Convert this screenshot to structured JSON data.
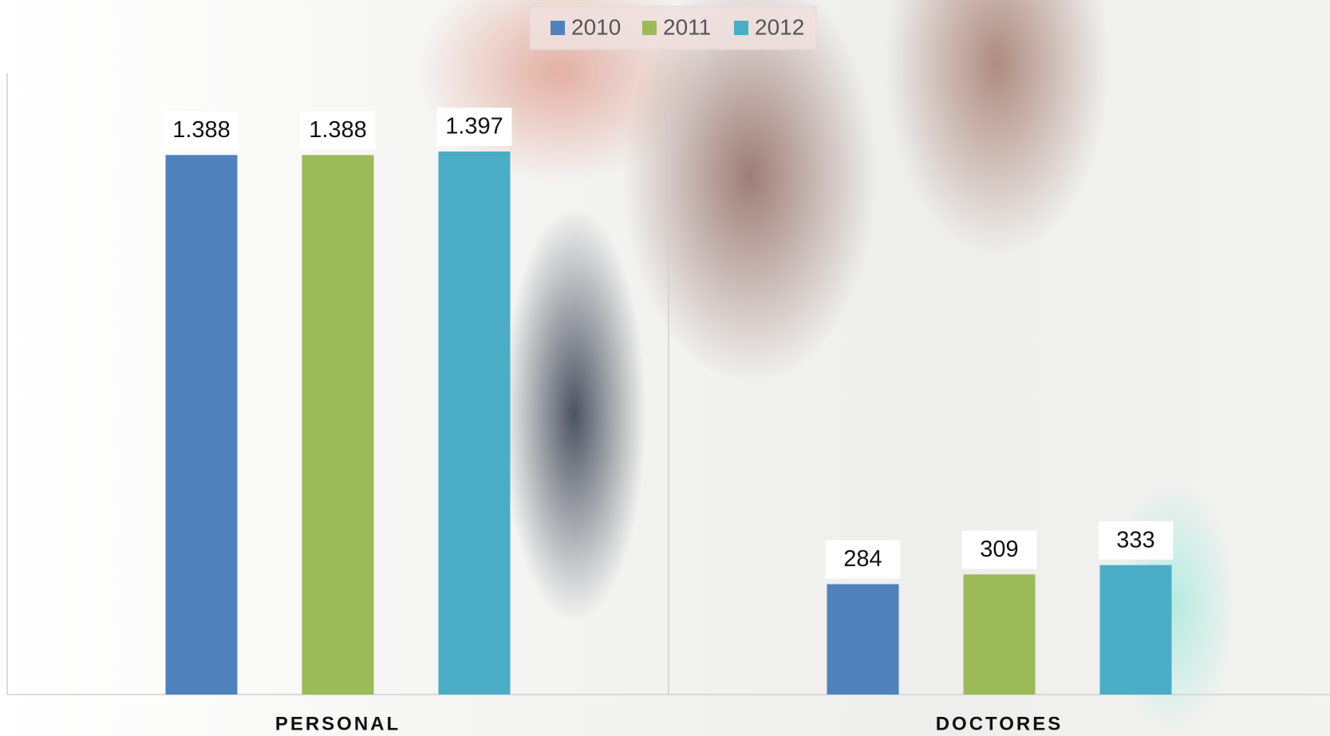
{
  "chart_data": {
    "type": "bar",
    "categories": [
      "PERSONAL",
      "DOCTORES"
    ],
    "series": [
      {
        "name": "2010",
        "color": "#4f81bd",
        "values": [
          1388,
          284
        ],
        "value_labels": [
          "1.388",
          "284"
        ]
      },
      {
        "name": "2011",
        "color": "#9bbb59",
        "values": [
          1388,
          309
        ],
        "value_labels": [
          "1.388",
          "309"
        ]
      },
      {
        "name": "2012",
        "color": "#4bacc6",
        "values": [
          1397,
          333
        ],
        "value_labels": [
          "1.397",
          "333"
        ]
      }
    ],
    "legend": "top"
  }
}
